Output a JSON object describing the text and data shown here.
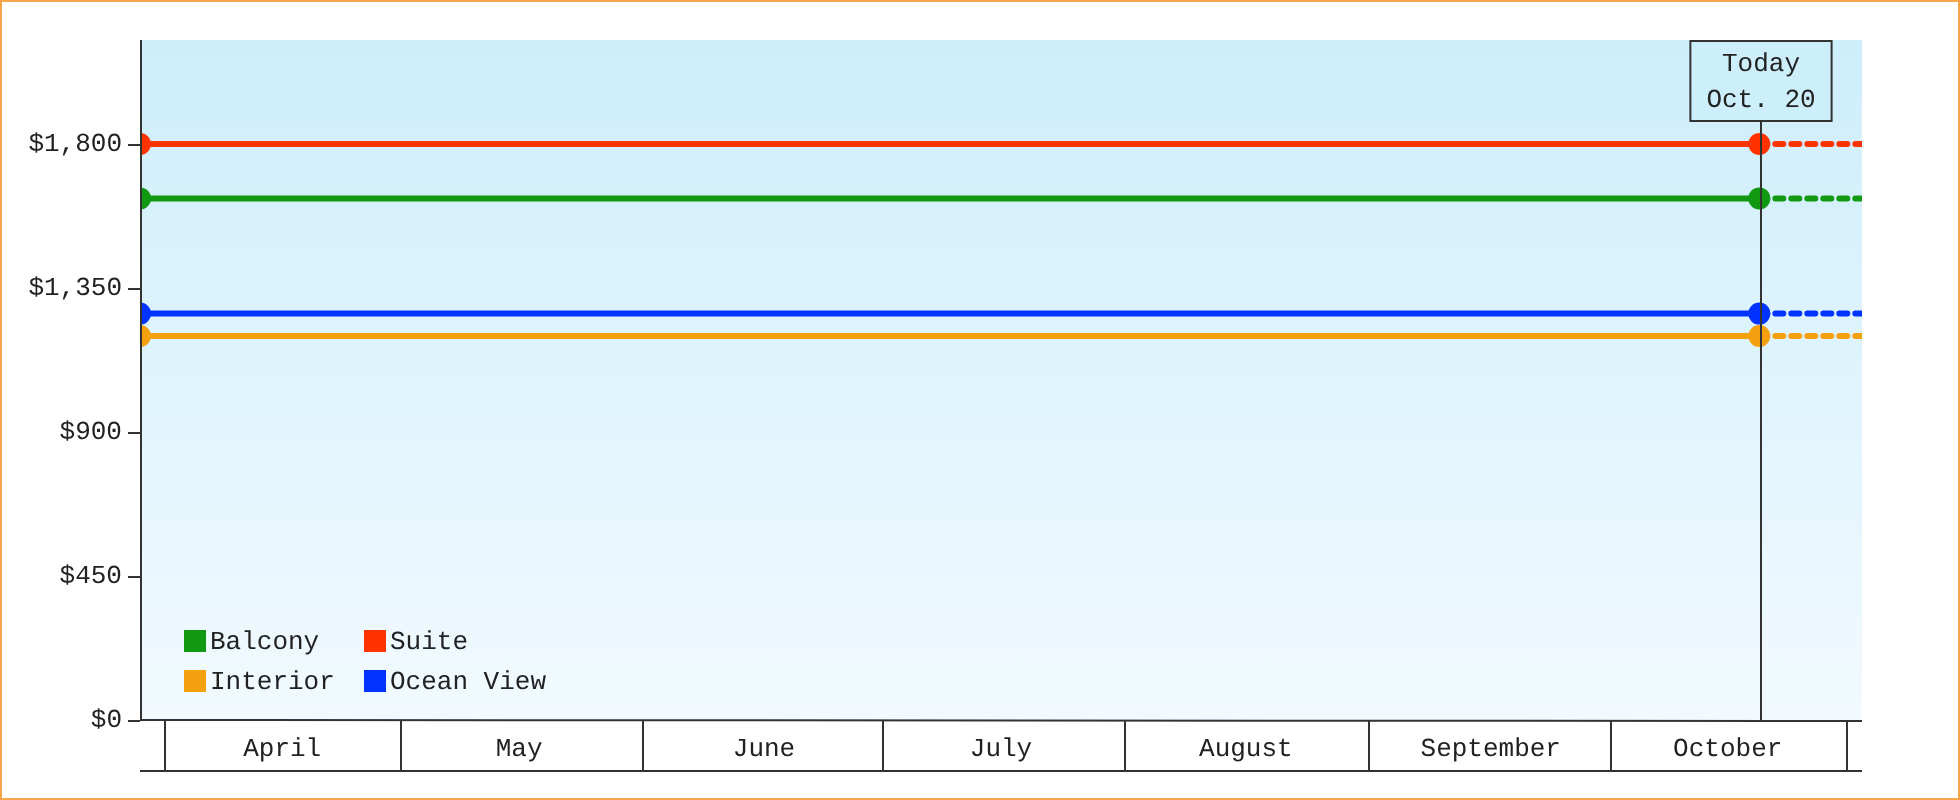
{
  "chart_data": {
    "type": "line",
    "x": [
      "--03-29",
      "--10-20",
      "--11-02"
    ],
    "series": [
      {
        "name": "Balcony",
        "color": "#119911",
        "values": [
          1630,
          1630,
          1630
        ]
      },
      {
        "name": "Suite",
        "color": "#ff3300",
        "values": [
          1800,
          1800,
          1800
        ]
      },
      {
        "name": "Interior",
        "color": "#f5a10f",
        "values": [
          1200,
          1200,
          1200
        ]
      },
      {
        "name": "Ocean View",
        "color": "#0033ff",
        "values": [
          1270,
          1270,
          1270
        ]
      }
    ],
    "xlim": [
      "--03-29",
      "--11-02"
    ],
    "xticks": [
      {
        "value": "--04-16",
        "label": "April"
      },
      {
        "value": "--05-16",
        "label": "May"
      },
      {
        "value": "--06-16",
        "label": "June"
      },
      {
        "value": "--07-16",
        "label": "July"
      },
      {
        "value": "--08-16",
        "label": "August"
      },
      {
        "value": "--09-16",
        "label": "September"
      },
      {
        "value": "--10-16",
        "label": "October"
      }
    ],
    "ylim": [
      0,
      2125
    ],
    "yticks": [
      {
        "value": 0,
        "label": "$0"
      },
      {
        "value": 450,
        "label": "$450"
      },
      {
        "value": 900,
        "label": "$900"
      },
      {
        "value": 1350,
        "label": "$1,350"
      },
      {
        "value": 1800,
        "label": "$1,800"
      }
    ],
    "ref_lines": [
      {
        "axis": "x",
        "value": "--10-20",
        "label": "Today\nOct. 20"
      }
    ],
    "legend": "bottom left",
    "marker": "circle",
    "line_style": "solid",
    "grid": false
  }
}
